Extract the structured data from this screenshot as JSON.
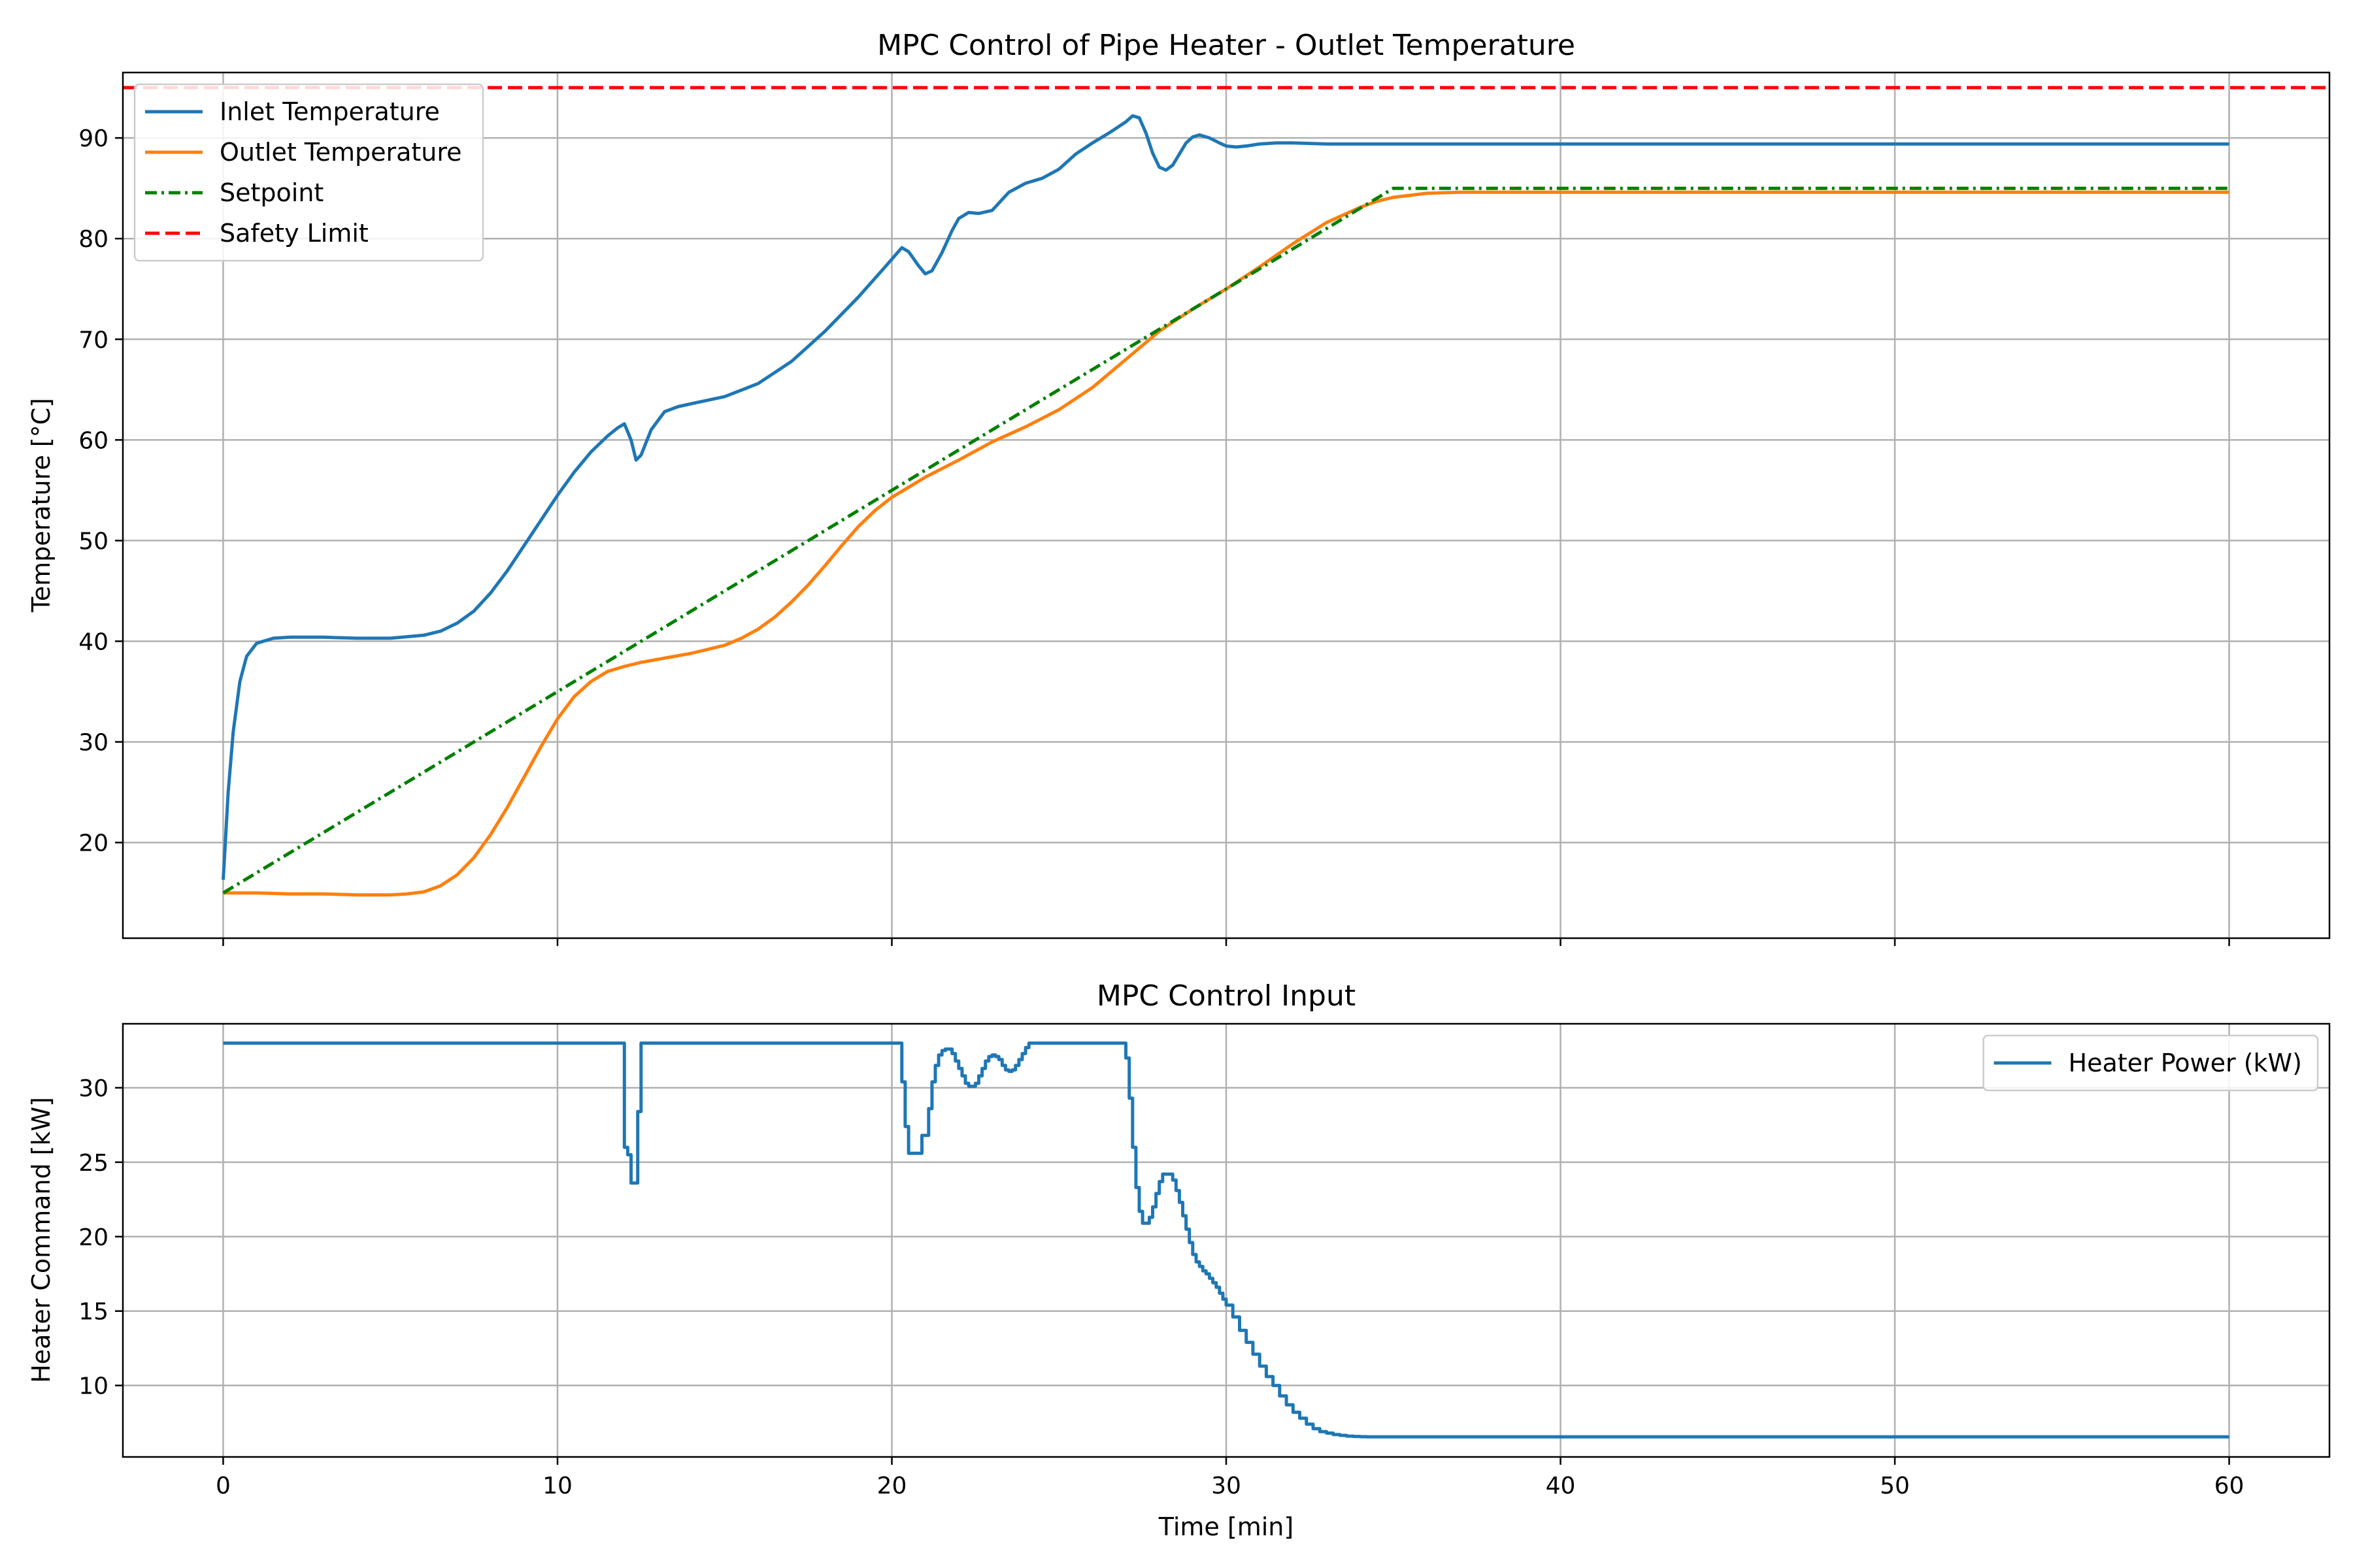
{
  "chart_data": [
    {
      "type": "line",
      "title": "MPC Control of Pipe Heater - Outlet Temperature",
      "xlabel": "",
      "ylabel": "Temperature [°C]",
      "xlim": [
        -3,
        63
      ],
      "ylim": [
        10.5,
        96.5
      ],
      "xticks": [
        0,
        10,
        20,
        30,
        40,
        50,
        60
      ],
      "yticks": [
        20,
        30,
        40,
        50,
        60,
        70,
        80,
        90
      ],
      "grid": true,
      "legend": "upper-left",
      "series": [
        {
          "name": "Inlet Temperature",
          "color": "#1f77b4",
          "dash": "solid",
          "x": [
            0,
            0.15,
            0.3,
            0.5,
            0.7,
            1.0,
            1.5,
            2,
            3,
            4,
            5,
            6,
            6.5,
            7,
            7.5,
            8,
            8.5,
            9,
            9.5,
            10,
            10.5,
            11,
            11.5,
            11.8,
            12.0,
            12.2,
            12.35,
            12.5,
            12.8,
            13.2,
            13.6,
            14,
            15,
            16,
            17,
            18,
            19,
            19.8,
            20.3,
            20.5,
            20.8,
            21.0,
            21.2,
            21.5,
            21.8,
            22.0,
            22.3,
            22.6,
            23.0,
            23.5,
            24,
            24.5,
            25,
            25.5,
            26,
            26.5,
            27,
            27.2,
            27.4,
            27.6,
            27.8,
            28.0,
            28.2,
            28.4,
            28.6,
            28.8,
            29.0,
            29.2,
            29.5,
            29.8,
            30.0,
            30.3,
            30.6,
            31,
            31.5,
            32,
            33,
            35,
            40,
            45,
            50,
            55,
            60
          ],
          "y": [
            16.3,
            25,
            31,
            36,
            38.5,
            39.8,
            40.3,
            40.4,
            40.4,
            40.3,
            40.3,
            40.6,
            41.0,
            41.8,
            43.0,
            44.8,
            47.0,
            49.5,
            52.0,
            54.5,
            56.8,
            58.8,
            60.4,
            61.2,
            61.6,
            60.0,
            58.0,
            58.5,
            61.0,
            62.8,
            63.3,
            63.6,
            64.3,
            65.6,
            67.8,
            70.8,
            74.2,
            77.2,
            79.1,
            78.7,
            77.3,
            76.5,
            76.8,
            78.6,
            80.8,
            82.0,
            82.6,
            82.5,
            82.8,
            84.6,
            85.5,
            86.0,
            86.9,
            88.4,
            89.5,
            90.5,
            91.6,
            92.2,
            92.0,
            90.5,
            88.5,
            87.1,
            86.8,
            87.3,
            88.4,
            89.5,
            90.1,
            90.3,
            90.0,
            89.5,
            89.2,
            89.1,
            89.2,
            89.4,
            89.5,
            89.5,
            89.4,
            89.4,
            89.4,
            89.4,
            89.4,
            89.4,
            89.4
          ]
        },
        {
          "name": "Outlet Temperature",
          "color": "#ff7f0e",
          "dash": "solid",
          "x": [
            0,
            1,
            2,
            3,
            4,
            5,
            5.5,
            6,
            6.5,
            7,
            7.5,
            8,
            8.5,
            9,
            9.5,
            10,
            10.5,
            11,
            11.5,
            12,
            12.5,
            13,
            14,
            15,
            15.5,
            16,
            16.5,
            17,
            17.5,
            18,
            18.5,
            19,
            19.5,
            20,
            20.5,
            21,
            22,
            23,
            24,
            25,
            26,
            27,
            28,
            29,
            30,
            31,
            32,
            33,
            34,
            34.5,
            35,
            35.5,
            36,
            37,
            38,
            40,
            45,
            50,
            55,
            60
          ],
          "y": [
            15.0,
            15.0,
            14.9,
            14.9,
            14.8,
            14.8,
            14.9,
            15.1,
            15.7,
            16.8,
            18.5,
            20.8,
            23.5,
            26.5,
            29.5,
            32.3,
            34.5,
            36.0,
            37.0,
            37.5,
            37.9,
            38.2,
            38.8,
            39.6,
            40.3,
            41.2,
            42.4,
            43.9,
            45.6,
            47.5,
            49.5,
            51.4,
            53.0,
            54.3,
            55.3,
            56.3,
            58.0,
            59.8,
            61.3,
            63.0,
            65.2,
            68.0,
            70.8,
            73.0,
            75.0,
            77.2,
            79.5,
            81.6,
            83.1,
            83.7,
            84.1,
            84.3,
            84.5,
            84.6,
            84.6,
            84.6,
            84.6,
            84.6,
            84.6,
            84.6
          ]
        },
        {
          "name": "Setpoint",
          "color": "#008000",
          "dash": "dashdot",
          "x": [
            0,
            35,
            60
          ],
          "y": [
            15,
            85,
            85
          ]
        },
        {
          "name": "Safety Limit",
          "color": "#ff0000",
          "dash": "dashed",
          "x": [
            -3,
            63
          ],
          "y": [
            95,
            95
          ]
        }
      ]
    },
    {
      "type": "line",
      "title": "MPC Control Input",
      "xlabel": "Time [min]",
      "ylabel": "Heater Command [kW]",
      "xlim": [
        -3,
        63
      ],
      "ylim": [
        5.2,
        34.3
      ],
      "xticks": [
        0,
        10,
        20,
        30,
        40,
        50,
        60
      ],
      "yticks": [
        10,
        15,
        20,
        25,
        30
      ],
      "grid": true,
      "legend": "upper-right",
      "series": [
        {
          "name": "Heater Power (kW)",
          "color": "#1f77b4",
          "dash": "solid",
          "step": true,
          "x": [
            0,
            12.0,
            12.1,
            12.2,
            12.3,
            12.4,
            12.5,
            12.6,
            20.3,
            20.4,
            20.5,
            20.7,
            20.9,
            21.1,
            21.2,
            21.3,
            21.4,
            21.5,
            21.6,
            21.7,
            21.8,
            21.9,
            22.0,
            22.1,
            22.2,
            22.3,
            22.4,
            22.5,
            22.6,
            22.7,
            22.8,
            22.9,
            23.0,
            23.1,
            23.2,
            23.3,
            23.4,
            23.5,
            23.6,
            23.7,
            23.8,
            23.9,
            24.0,
            24.1,
            24.2,
            24.3,
            24.4,
            24.5,
            24.6,
            24.7,
            24.8,
            24.9,
            25.0,
            25.1,
            25.2,
            25.3,
            25.4,
            27.0,
            27.1,
            27.2,
            27.3,
            27.4,
            27.5,
            27.6,
            27.7,
            27.8,
            27.9,
            28.0,
            28.1,
            28.2,
            28.3,
            28.4,
            28.5,
            28.6,
            28.7,
            28.8,
            28.9,
            29.0,
            29.1,
            29.2,
            29.3,
            29.4,
            29.5,
            29.6,
            29.7,
            29.8,
            29.9,
            30.0,
            30.2,
            30.4,
            30.6,
            30.8,
            31.0,
            31.2,
            31.4,
            31.6,
            31.8,
            32.0,
            32.2,
            32.4,
            32.6,
            32.8,
            33.0,
            33.2,
            33.4,
            33.6,
            33.8,
            34.0,
            34.2,
            34.4,
            34.6,
            34.8,
            35.0,
            35.2,
            35.4,
            35.6,
            35.8,
            36.0,
            36.4,
            36.8,
            37.2,
            37.6,
            38.0,
            39,
            40,
            45,
            50,
            55,
            60
          ],
          "y": [
            33.0,
            26.0,
            25.5,
            23.6,
            23.6,
            28.4,
            33.0,
            33.0,
            30.4,
            27.4,
            25.6,
            25.6,
            26.8,
            28.6,
            30.4,
            31.5,
            32.2,
            32.5,
            32.6,
            32.6,
            32.3,
            31.8,
            31.3,
            30.8,
            30.3,
            30.1,
            30.1,
            30.3,
            30.8,
            31.3,
            31.8,
            32.1,
            32.2,
            32.1,
            31.9,
            31.5,
            31.2,
            31.1,
            31.2,
            31.5,
            31.9,
            32.3,
            32.7,
            33.0,
            33.0,
            33.0,
            33.0,
            33.0,
            33.0,
            33.0,
            33.0,
            33.0,
            33.0,
            33.0,
            33.0,
            33.0,
            33.0,
            32.0,
            29.3,
            26.0,
            23.3,
            21.7,
            20.9,
            20.9,
            21.3,
            22.0,
            22.9,
            23.7,
            24.2,
            24.2,
            24.2,
            23.8,
            23.1,
            22.3,
            21.4,
            20.5,
            19.6,
            18.8,
            18.3,
            18.0,
            17.7,
            17.5,
            17.2,
            16.9,
            16.6,
            16.2,
            15.8,
            15.4,
            14.6,
            13.7,
            12.9,
            12.1,
            11.3,
            10.6,
            10.0,
            9.3,
            8.7,
            8.2,
            7.8,
            7.4,
            7.1,
            6.9,
            6.8,
            6.7,
            6.65,
            6.6,
            6.58,
            6.56,
            6.55,
            6.55,
            6.55,
            6.55,
            6.55,
            6.55,
            6.55,
            6.55,
            6.55,
            6.55,
            6.55,
            6.55,
            6.55,
            6.55,
            6.55,
            6.55,
            6.55,
            6.55,
            6.55,
            6.55,
            6.55
          ]
        }
      ]
    }
  ]
}
